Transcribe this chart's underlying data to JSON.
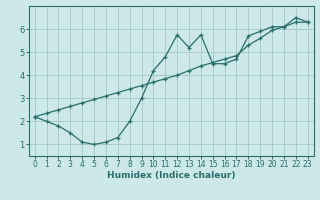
{
  "xlabel": "Humidex (Indice chaleur)",
  "bg_color": "#cce8e8",
  "grid_color": "#aacccc",
  "line_color": "#2a6e6e",
  "line1_x": [
    0,
    1,
    2,
    3,
    4,
    5,
    6,
    7,
    8,
    9,
    10,
    11,
    12,
    13,
    14,
    15,
    16,
    17,
    18,
    19,
    20,
    21,
    22,
    23
  ],
  "line1_y": [
    2.2,
    2.0,
    1.8,
    1.5,
    1.1,
    1.0,
    1.1,
    1.3,
    2.0,
    3.0,
    4.2,
    4.8,
    5.75,
    5.2,
    5.75,
    4.5,
    4.5,
    4.7,
    5.7,
    5.9,
    6.1,
    6.1,
    6.5,
    6.3
  ],
  "line2_x": [
    0,
    1,
    2,
    3,
    4,
    5,
    6,
    7,
    8,
    9,
    10,
    11,
    12,
    13,
    14,
    15,
    16,
    17,
    18,
    19,
    20,
    21,
    22,
    23
  ],
  "line2_y": [
    2.2,
    2.35,
    2.5,
    2.65,
    2.8,
    2.95,
    3.1,
    3.25,
    3.4,
    3.55,
    3.7,
    3.85,
    4.0,
    4.2,
    4.4,
    4.55,
    4.7,
    4.85,
    5.3,
    5.6,
    5.95,
    6.1,
    6.3,
    6.3
  ],
  "xlim": [
    -0.5,
    23.5
  ],
  "ylim": [
    0.5,
    7.0
  ],
  "yticks": [
    1,
    2,
    3,
    4,
    5,
    6
  ],
  "xticks": [
    0,
    1,
    2,
    3,
    4,
    5,
    6,
    7,
    8,
    9,
    10,
    11,
    12,
    13,
    14,
    15,
    16,
    17,
    18,
    19,
    20,
    21,
    22,
    23
  ],
  "tick_fontsize": 5.5,
  "xlabel_fontsize": 6.5,
  "marker_size": 3.5,
  "line_width": 0.9
}
